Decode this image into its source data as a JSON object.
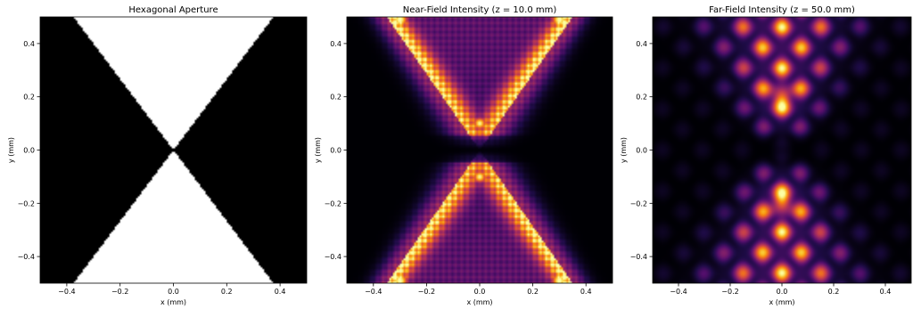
{
  "chart_data": [
    {
      "type": "heatmap",
      "title": "Hexagonal Aperture",
      "xlabel": "x (mm)",
      "ylabel": "y (mm)",
      "xlim": [
        -0.5,
        0.5
      ],
      "ylim": [
        -0.5,
        0.5
      ],
      "xticks": [
        -0.4,
        -0.2,
        0.0,
        0.2,
        0.4
      ],
      "yticks": [
        -0.4,
        -0.2,
        0.0,
        0.2,
        0.4
      ],
      "xtick_labels": [
        "−0.4",
        "−0.2",
        "0.0",
        "0.2",
        "0.4"
      ],
      "ytick_labels": [
        "−0.4",
        "−0.2",
        "0.0",
        "0.2",
        "0.4"
      ],
      "colormap": "gray",
      "field": "aperture",
      "aperture": {
        "shape": "hourglass",
        "edge_x_at_top": 0.375,
        "inside_value": 1,
        "outside_value": 0
      },
      "grid": false
    },
    {
      "type": "heatmap",
      "title": "Near-Field Intensity (z = 10.0 mm)",
      "xlabel": "x (mm)",
      "ylabel": "y (mm)",
      "xlim": [
        -0.5,
        0.5
      ],
      "ylim": [
        -0.5,
        0.5
      ],
      "xticks": [
        -0.4,
        -0.2,
        0.0,
        0.2,
        0.4
      ],
      "yticks": [
        -0.4,
        -0.2,
        0.0,
        0.2,
        0.4
      ],
      "xtick_labels": [
        "−0.4",
        "−0.2",
        "0.0",
        "0.2",
        "0.4"
      ],
      "ytick_labels": [
        "−0.4",
        "−0.2",
        "0.0",
        "0.2",
        "0.4"
      ],
      "colormap": "inferno",
      "field": "near",
      "z_mm": 10.0,
      "grid": false
    },
    {
      "type": "heatmap",
      "title": "Far-Field Intensity (z = 50.0 mm)",
      "xlabel": "x (mm)",
      "ylabel": "y (mm)",
      "xlim": [
        -0.5,
        0.5
      ],
      "ylim": [
        -0.5,
        0.5
      ],
      "xticks": [
        -0.4,
        -0.2,
        0.0,
        0.2,
        0.4
      ],
      "yticks": [
        -0.4,
        -0.2,
        0.0,
        0.2,
        0.4
      ],
      "xtick_labels": [
        "−0.4",
        "−0.2",
        "0.0",
        "0.2",
        "0.4"
      ],
      "ytick_labels": [
        "−0.4",
        "−0.2",
        "0.0",
        "0.2",
        "0.4"
      ],
      "colormap": "inferno",
      "field": "far",
      "z_mm": 50.0,
      "grid": false
    }
  ]
}
